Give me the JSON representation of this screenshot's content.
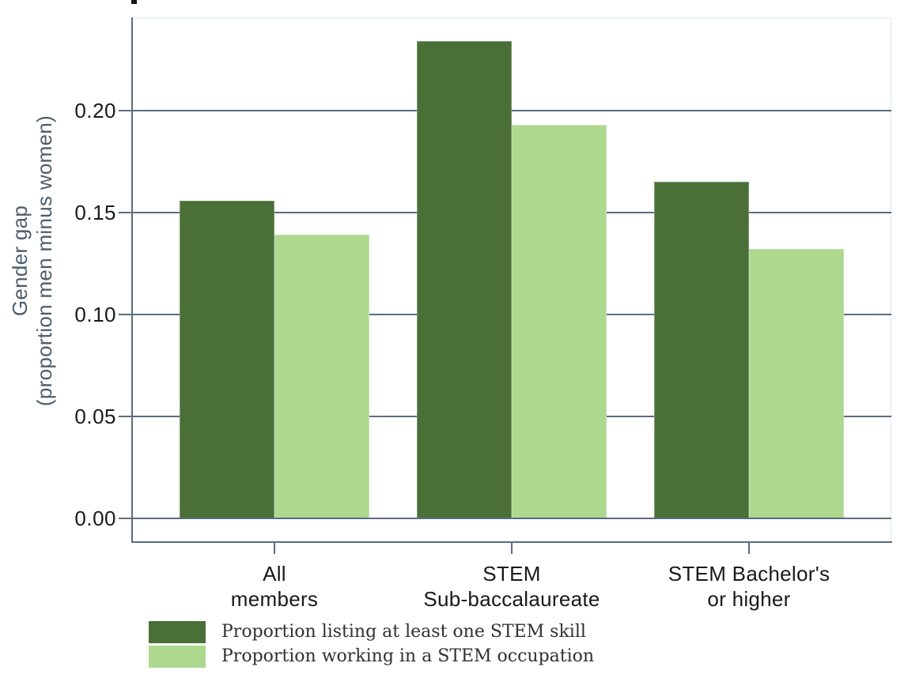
{
  "chart_data": {
    "type": "bar",
    "title": "",
    "categories": [
      {
        "line1": "All",
        "line2": "members"
      },
      {
        "line1": "STEM",
        "line2": "Sub-baccalaureate"
      },
      {
        "line1": "STEM Bachelor's",
        "line2": "or higher"
      }
    ],
    "series": [
      {
        "name": "Proportion listing at least one STEM skill",
        "color": "#4a7037",
        "values": [
          0.156,
          0.234,
          0.165
        ]
      },
      {
        "name": "Proportion working in a STEM occupation",
        "color": "#add88e",
        "values": [
          0.139,
          0.193,
          0.132
        ]
      }
    ],
    "ylabel_line1": "Gender gap",
    "ylabel_line2": "(proportion men minus women)",
    "ytick_labels": [
      "0.00",
      "0.05",
      "0.10",
      "0.15",
      "0.20"
    ],
    "ytick_values": [
      0.0,
      0.05,
      0.1,
      0.15,
      0.2
    ],
    "ylim": [
      0,
      0.245
    ],
    "grid": true,
    "legend_position": "bottom-left",
    "colors": {
      "series_dark": "#4a7037",
      "series_light": "#add88e",
      "gridline": "#5b6d7e",
      "tick_label": "#17191c",
      "axis_title": "#4d5d6b",
      "legend_text": "#2f3231"
    }
  }
}
